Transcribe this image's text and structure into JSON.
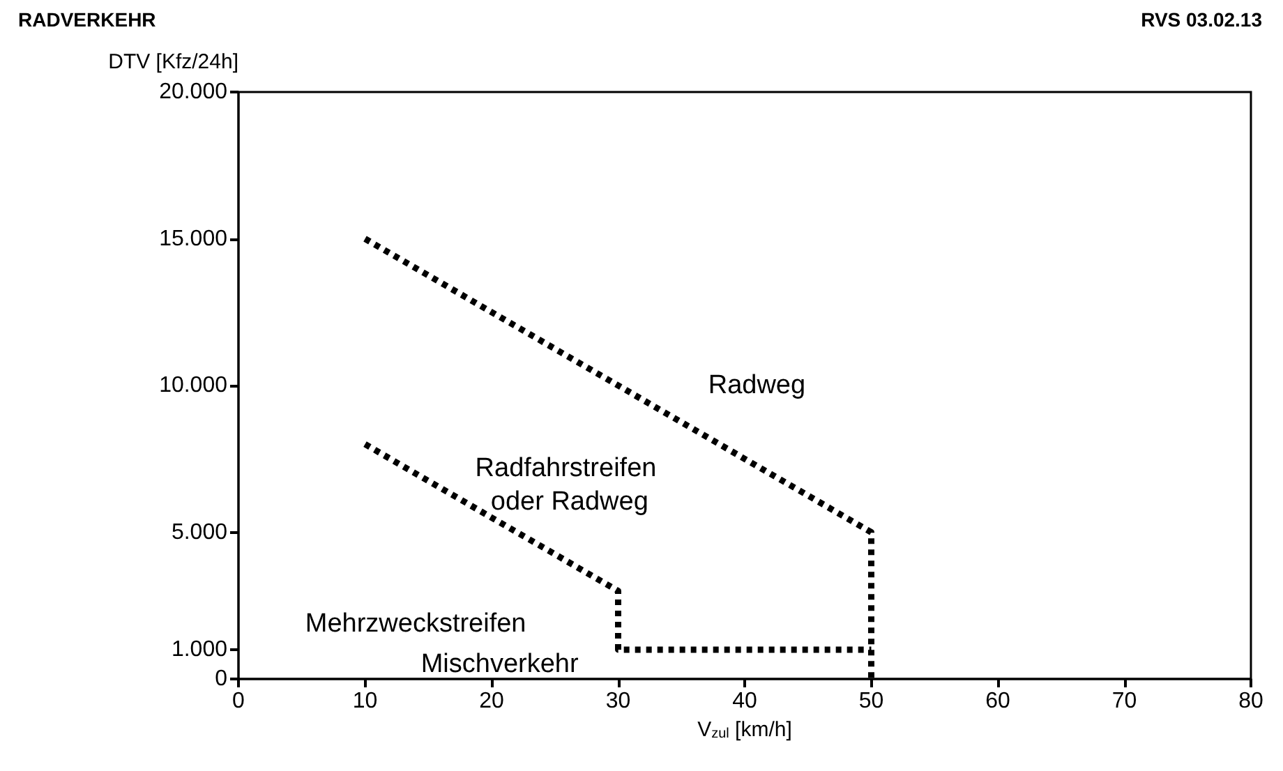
{
  "chart_data": {
    "type": "line",
    "title": "RADVERKEHR",
    "subtitle": "RVS 03.02.13",
    "xlabel": "V$_{zul}$ [km/h]",
    "ylabel": "DTV [Kfz/24h]",
    "xlim": [
      0,
      80
    ],
    "xticks": [
      0,
      10,
      20,
      30,
      40,
      50,
      60,
      70,
      80
    ],
    "ylim": [
      0,
      20000
    ],
    "yticks": [
      0,
      {
        "value": 1000,
        "label": "1.000"
      },
      {
        "value": 5000,
        "label": "5.000"
      },
      {
        "value": 10000,
        "label": "10.000"
      },
      {
        "value": 15000,
        "label": "15.000"
      },
      {
        "value": 20000,
        "label": "20.000"
      }
    ],
    "series": [
      {
        "color": "#000000",
        "x": [
          10,
          50,
          50
        ],
        "values": [
          15000,
          5000,
          0
        ]
      },
      {
        "color": "#000000",
        "x": [
          10,
          30,
          30,
          50
        ],
        "values": [
          8000,
          3000,
          1000,
          1000
        ]
      }
    ],
    "annotations": [
      "Radweg",
      "Radfahrstreifen oder Radweg",
      "Mehrzweckstreifen",
      "Mischverkehr"
    ],
    "grid": false,
    "marker": "none",
    "line_style": "dotted"
  }
}
